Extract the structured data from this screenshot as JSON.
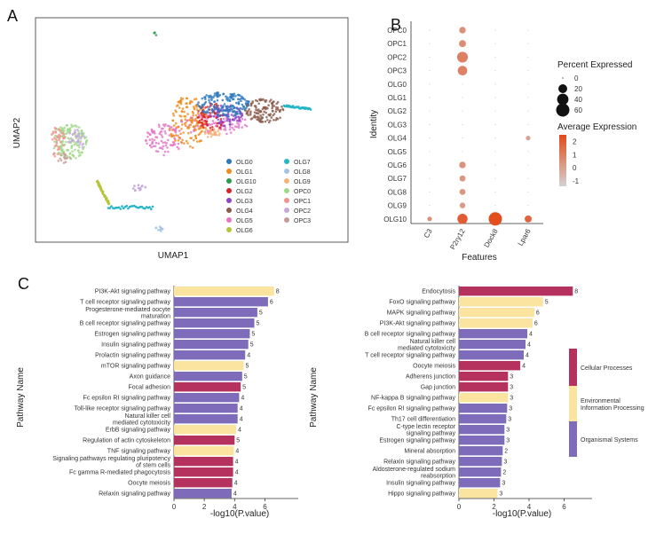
{
  "panels": {
    "a": "A",
    "b": "B",
    "c": "C"
  },
  "chart_data": [
    {
      "type": "scatter",
      "title": "UMAP",
      "xlabel": "UMAP1",
      "ylabel": "UMAP2",
      "legend": [
        {
          "name": "OLG0",
          "color": "#2E78BE"
        },
        {
          "name": "OLG1",
          "color": "#F28B1E"
        },
        {
          "name": "OLG10",
          "color": "#2A9A4E"
        },
        {
          "name": "OLG2",
          "color": "#D8232A"
        },
        {
          "name": "OLG3",
          "color": "#8E44C4"
        },
        {
          "name": "OLG4",
          "color": "#8B5A4A"
        },
        {
          "name": "OLG5",
          "color": "#E276C5"
        },
        {
          "name": "OLG6",
          "color": "#B6C43A"
        },
        {
          "name": "OLG7",
          "color": "#26B5C6"
        },
        {
          "name": "OLG8",
          "color": "#A6C3E3"
        },
        {
          "name": "OLG9",
          "color": "#F6B27A"
        },
        {
          "name": "OPC0",
          "color": "#9FD98A"
        },
        {
          "name": "OPC1",
          "color": "#F0928E"
        },
        {
          "name": "OPC2",
          "color": "#C7A9DD"
        },
        {
          "name": "OPC3",
          "color": "#C39C94"
        }
      ]
    },
    {
      "type": "dot",
      "xlabel": "Features",
      "ylabel": "Identity",
      "features": [
        "C3",
        "P2ry12",
        "Dock8",
        "Lpar6"
      ],
      "identities": [
        "OPC0",
        "OPC1",
        "OPC2",
        "OPC3",
        "OLG0",
        "OLG1",
        "OLG2",
        "OLG3",
        "OLG4",
        "OLG5",
        "OLG6",
        "OLG7",
        "OLG8",
        "OLG9",
        "OLG10"
      ],
      "percent": [
        [
          0,
          8,
          0,
          0
        ],
        [
          0,
          10,
          0,
          0
        ],
        [
          0,
          35,
          0,
          0
        ],
        [
          0,
          25,
          0,
          0
        ],
        [
          0,
          0,
          0,
          0
        ],
        [
          0,
          0,
          0,
          0
        ],
        [
          0,
          0,
          0,
          0
        ],
        [
          0,
          0,
          0,
          0
        ],
        [
          0,
          0,
          0,
          2
        ],
        [
          0,
          0,
          0,
          0
        ],
        [
          0,
          8,
          0,
          0
        ],
        [
          0,
          6,
          0,
          0
        ],
        [
          0,
          6,
          0,
          0
        ],
        [
          0,
          5,
          0,
          0
        ],
        [
          2,
          30,
          60,
          10
        ]
      ],
      "avg": [
        [
          -1,
          0.5,
          -1,
          -1
        ],
        [
          -1,
          0.6,
          -1,
          -1
        ],
        [
          -1,
          1.0,
          -1,
          -1
        ],
        [
          -1,
          0.9,
          -1,
          -1
        ],
        [
          -1,
          -1,
          -1,
          -1
        ],
        [
          -1,
          -1,
          -1,
          -1
        ],
        [
          -1,
          -1,
          -1,
          -1
        ],
        [
          -1,
          -1,
          -1,
          -1
        ],
        [
          -1,
          -1,
          -1,
          0
        ],
        [
          -1,
          -1,
          -1,
          -1
        ],
        [
          -1,
          0.4,
          -1,
          -1
        ],
        [
          -1,
          0.3,
          -1,
          -1
        ],
        [
          -1,
          0.3,
          -1,
          -1
        ],
        [
          -1,
          0.2,
          -1,
          -1
        ],
        [
          0.5,
          2.0,
          2.4,
          1.8
        ]
      ],
      "size_legend": {
        "title": "Percent Expressed",
        "values": [
          0,
          20,
          40,
          60
        ]
      },
      "color_legend": {
        "title": "Average Expression",
        "ticks": [
          2,
          1,
          0,
          -1
        ],
        "range": [
          -1.4,
          2.5
        ],
        "low": "#d3d3d3",
        "high": "#e34a1a"
      }
    },
    {
      "type": "bar",
      "orientation": "horizontal",
      "xlabel": "-log10(P.value)",
      "ylabel": "Pathway Name",
      "xlim": [
        0,
        8.2
      ],
      "xticks": [
        0,
        2,
        4,
        6
      ],
      "categories": [
        "PI3K-Akt signaling pathway",
        "T cell receptor signaling pathway",
        "Progesterone-mediated oocyte maturation",
        "B cell receptor signaling pathway",
        "Estrogen signaling pathway",
        "Insulin signaling pathway",
        "Prolactin signaling pathway",
        "mTOR signaling pathway",
        "Axon guidance",
        "Focal adhesion",
        "Fc epsilon RI signaling pathway",
        "Toll-like receptor signaling pathway",
        "Natural killer cell mediated cytotoxicity",
        "ErbB signaling pathway",
        "Regulation of actin cytoskeleton",
        "TNF signaling pathway",
        "Signaling pathways regulating pluripotency of stem cells",
        "Fc gamma R-mediated phagocytosis",
        "Oocyte meiosis",
        "Relaxin signaling pathway"
      ],
      "values": [
        6.6,
        6.2,
        5.5,
        5.3,
        5.0,
        4.9,
        4.7,
        4.6,
        4.5,
        4.4,
        4.3,
        4.2,
        4.2,
        4.1,
        4.0,
        3.95,
        3.9,
        3.9,
        3.85,
        3.8
      ],
      "counts": [
        "8",
        "6",
        "5",
        "5",
        "5",
        "5",
        "4",
        "5",
        "5",
        "5",
        "4",
        "4",
        "4",
        "4",
        "5",
        "4",
        "4",
        "4",
        "4",
        "4"
      ],
      "groups": [
        1,
        2,
        2,
        2,
        2,
        2,
        2,
        1,
        2,
        0,
        2,
        2,
        2,
        1,
        0,
        1,
        0,
        0,
        0,
        2
      ]
    },
    {
      "type": "bar",
      "orientation": "horizontal",
      "xlabel": "-log10(P.value)",
      "ylabel": "Pathway Name",
      "xlim": [
        0,
        7.6
      ],
      "xticks": [
        0,
        2,
        4,
        6
      ],
      "categories": [
        "Endocytosis",
        "FoxO signaling pathway",
        "MAPK signaling pathway",
        "PI3K-Akt signaling pathway",
        "B cell receptor signaling pathway",
        "Natural killer cell mediated cytotoxicity",
        "T cell receptor signaling pathway",
        "Oocyte meiosis",
        "Adherens junction",
        "Gap junction",
        "NF-kappa B signaling pathway",
        "Fc epsilon RI signaling pathway",
        "Th17 cell differentiation",
        "C-type lectin receptor signaling pathway",
        "Estrogen signaling pathway",
        "Mineral absorption",
        "Relaxin signaling pathway",
        "Aldosterone-regulated sodium reabsorption",
        "Insulin signaling pathway",
        "Hippo signaling pathway"
      ],
      "values": [
        6.5,
        4.8,
        4.3,
        4.2,
        3.9,
        3.8,
        3.7,
        3.5,
        2.8,
        2.8,
        2.8,
        2.75,
        2.7,
        2.6,
        2.6,
        2.5,
        2.45,
        2.4,
        2.35,
        2.2
      ],
      "counts": [
        "8",
        "5",
        "6",
        "6",
        "4",
        "4",
        "4",
        "4",
        "3",
        "3",
        "3",
        "3",
        "3",
        "3",
        "3",
        "2",
        "3",
        "2",
        "3",
        "3"
      ],
      "groups": [
        0,
        1,
        1,
        1,
        2,
        2,
        2,
        0,
        0,
        0,
        1,
        2,
        2,
        2,
        2,
        2,
        2,
        2,
        2,
        1
      ]
    }
  ],
  "group_legend": [
    {
      "label": "Cellular Processes",
      "color": "#B5325E"
    },
    {
      "label": "Environmental Information Processing",
      "color": "#FBE3A0"
    },
    {
      "label": "Organismal Systems",
      "color": "#7E6BB9"
    }
  ],
  "group_legend_lines": [
    [
      "Cellular Processes"
    ],
    [
      "Environmental",
      "Information Processing"
    ],
    [
      "Organismal Systems"
    ]
  ]
}
